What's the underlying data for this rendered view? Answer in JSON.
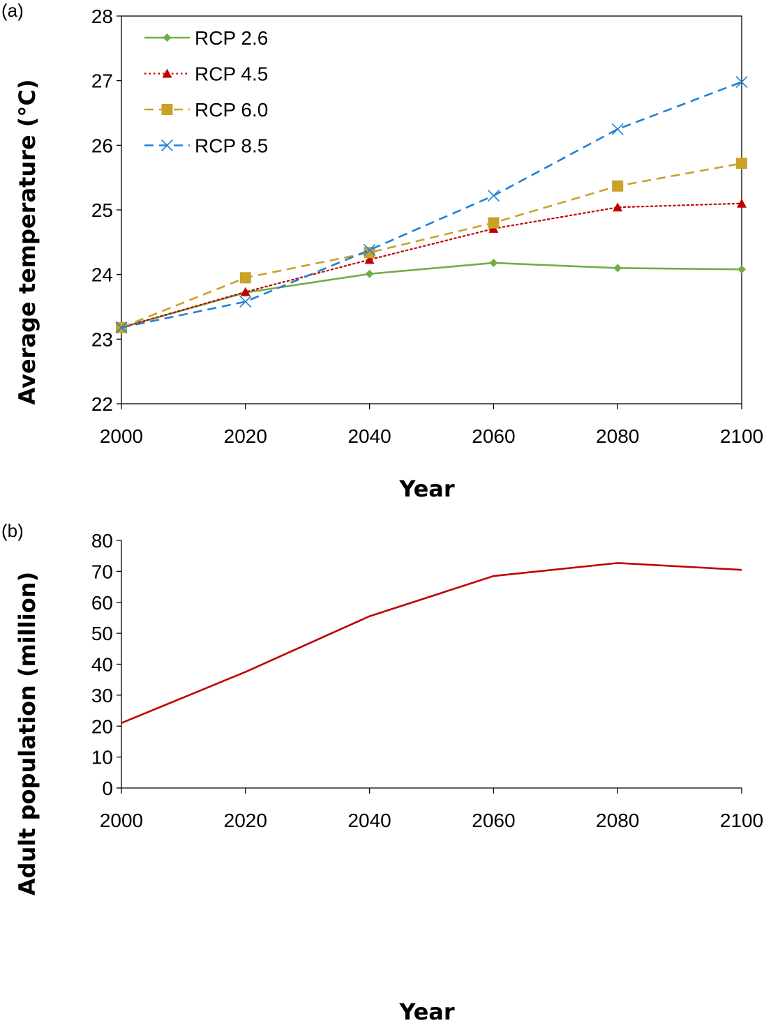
{
  "chart_data": [
    {
      "type": "line",
      "panel_label": "(a)",
      "x": [
        2000,
        2020,
        2040,
        2060,
        2080,
        2100
      ],
      "x_ticks": [
        "2000",
        "2020",
        "2040",
        "2060",
        "2080",
        "2100"
      ],
      "y_ticks": [
        "22",
        "23",
        "24",
        "25",
        "26",
        "27",
        "28"
      ],
      "xlabel": "Year",
      "ylabel": "Average temperature (°C)",
      "xlim": [
        2000,
        2100
      ],
      "ylim": [
        22,
        28
      ],
      "grid": false,
      "legend_position": "top-left",
      "series": [
        {
          "name": "RCP 2.6",
          "values": [
            23.18,
            23.72,
            24.01,
            24.18,
            24.1,
            24.08
          ],
          "color": "#70ad47",
          "marker": "diamond",
          "dash": "solid"
        },
        {
          "name": "RCP 4.5",
          "values": [
            23.18,
            23.73,
            24.23,
            24.71,
            25.04,
            25.1
          ],
          "color": "#c00000",
          "marker": "triangle",
          "dash": "dotted"
        },
        {
          "name": "RCP 6.0",
          "values": [
            23.18,
            23.95,
            24.34,
            24.8,
            25.37,
            25.72
          ],
          "color": "#c9a227",
          "marker": "square",
          "dash": "dashed"
        },
        {
          "name": "RCP 8.5",
          "values": [
            23.18,
            23.58,
            24.38,
            25.22,
            26.25,
            26.98
          ],
          "color": "#1f80d6",
          "marker": "x",
          "dash": "dashed"
        }
      ]
    },
    {
      "type": "line",
      "panel_label": "(b)",
      "x": [
        2000,
        2020,
        2040,
        2060,
        2080,
        2100
      ],
      "x_ticks": [
        "2000",
        "2020",
        "2040",
        "2060",
        "2080",
        "2100"
      ],
      "y_ticks": [
        "0",
        "10",
        "20",
        "30",
        "40",
        "50",
        "60",
        "70",
        "80"
      ],
      "xlabel": "Year",
      "ylabel": "Adult population (million)",
      "xlim": [
        2000,
        2100
      ],
      "ylim": [
        0,
        80
      ],
      "grid": false,
      "series": [
        {
          "values": [
            21.0,
            37.5,
            55.5,
            68.5,
            72.7,
            70.5
          ],
          "color": "#c00000",
          "marker": "none",
          "dash": "solid"
        }
      ]
    }
  ]
}
